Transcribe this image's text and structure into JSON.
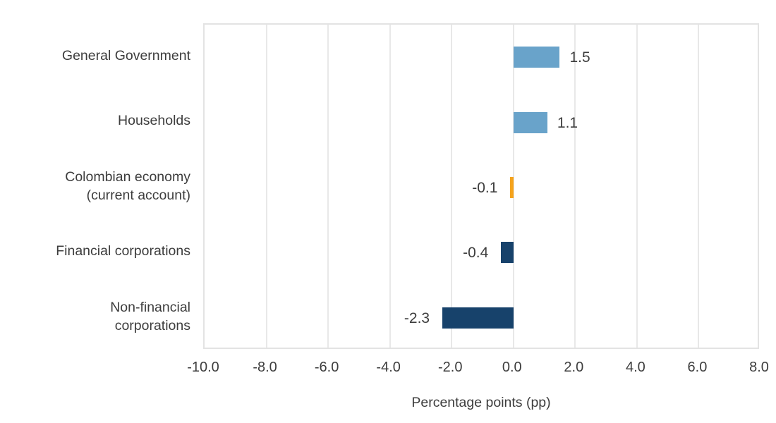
{
  "chart_data": {
    "type": "bar",
    "orientation": "horizontal",
    "title": "",
    "xlabel": "Percentage points (pp)",
    "ylabel": "",
    "xlim": [
      -10.0,
      8.0
    ],
    "x_tick_step": 2.0,
    "x_tick_labels": [
      "-10.0",
      "-8.0",
      "-6.0",
      "-4.0",
      "-2.0",
      "0.0",
      "2.0",
      "4.0",
      "6.0",
      "8.0"
    ],
    "grid": "vertical",
    "legend": "none",
    "categories": [
      "General Government",
      "Households",
      "Colombian economy\n(current account)",
      "Financial corporations",
      "Non-financial\ncorporations"
    ],
    "values": [
      1.5,
      1.1,
      -0.1,
      -0.4,
      -2.3
    ],
    "value_labels": [
      "1.5",
      "1.1",
      "-0.1",
      "-0.4",
      "-2.3"
    ],
    "bar_colors": [
      "#69a3ca",
      "#69a3ca",
      "#f5a31c",
      "#17426b",
      "#17426b"
    ],
    "colors": {
      "positive_blue": "#69a3ca",
      "accent_orange": "#f5a31c",
      "negative_navy": "#17426b",
      "gridline": "#e8e8e8",
      "plot_border": "#e3e3e3",
      "text": "#3d3d3d",
      "background": "#ffffff"
    }
  }
}
